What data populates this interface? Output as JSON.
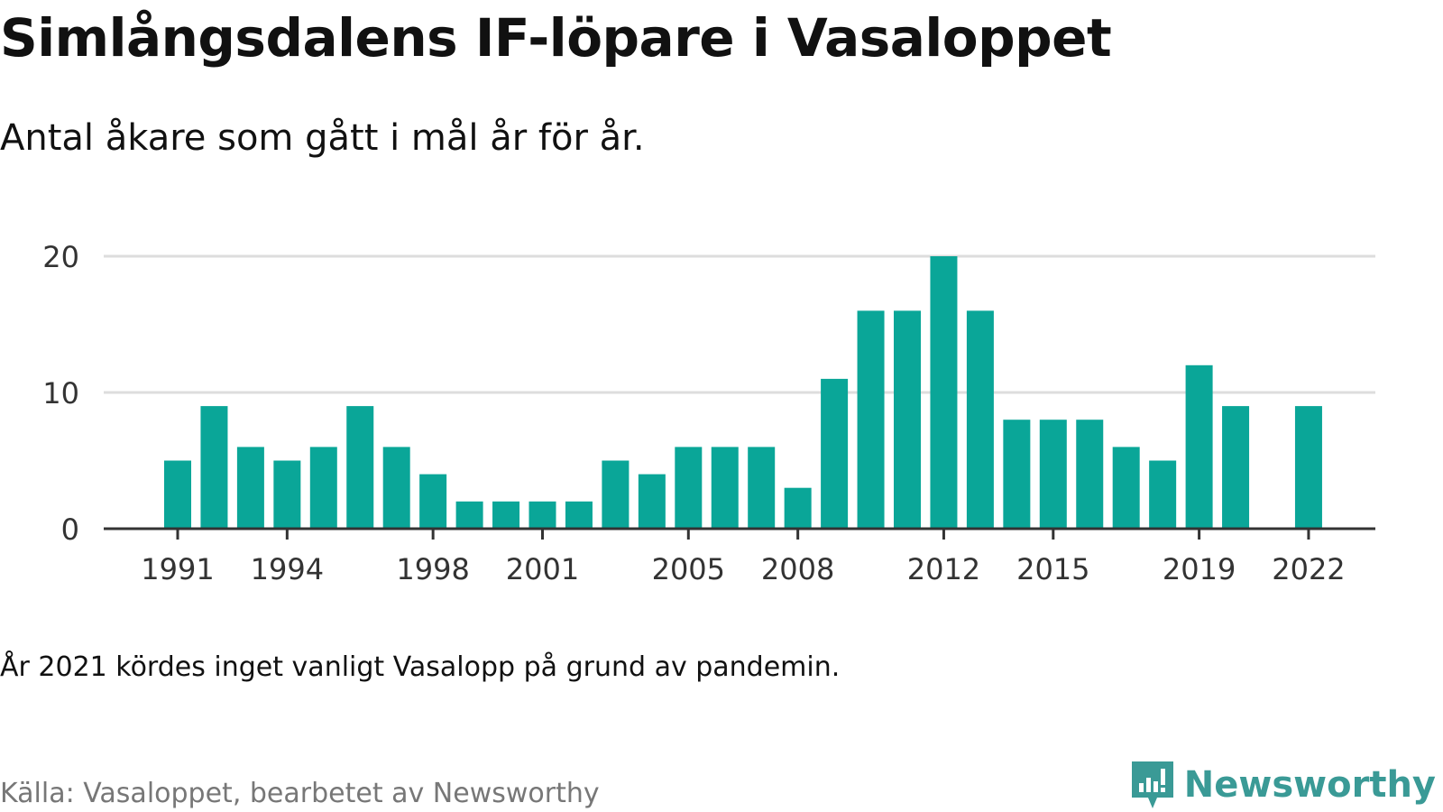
{
  "title": "Simlångsdalens IF-löpare i Vasaloppet",
  "subtitle": "Antal åkare som gått i mål år för år.",
  "note": "År 2021 kördes inget vanligt Vasalopp på grund av pandemin.",
  "source": "Källa: Vasaloppet, bearbetet av Newsworthy",
  "brand": {
    "name": "Newsworthy",
    "icon": "newsworthy-logo-icon"
  },
  "colors": {
    "bar": "#0aa698",
    "grid": "#dddddd",
    "axis": "#333333",
    "brand": "#3a9a96"
  },
  "chart_data": {
    "type": "bar",
    "title": "Simlångsdalens IF-löpare i Vasaloppet",
    "subtitle": "Antal åkare som gått i mål år för år.",
    "xlabel": "",
    "ylabel": "",
    "x": [
      1991,
      1992,
      1993,
      1994,
      1995,
      1996,
      1997,
      1998,
      1999,
      2000,
      2001,
      2002,
      2003,
      2004,
      2005,
      2006,
      2007,
      2008,
      2009,
      2010,
      2011,
      2012,
      2013,
      2014,
      2015,
      2016,
      2017,
      2018,
      2019,
      2020,
      2021,
      2022
    ],
    "values": [
      5,
      9,
      6,
      5,
      6,
      9,
      6,
      4,
      2,
      2,
      2,
      2,
      5,
      4,
      6,
      6,
      6,
      3,
      11,
      16,
      16,
      20,
      16,
      8,
      8,
      8,
      6,
      5,
      12,
      9,
      null,
      9
    ],
    "xticks": [
      "1991",
      "1994",
      "1998",
      "2001",
      "2005",
      "2008",
      "2012",
      "2015",
      "2019",
      "2022"
    ],
    "yticks": [
      "0",
      "10",
      "20"
    ],
    "ylim": [
      0,
      20
    ],
    "grid": true,
    "legend": "none"
  }
}
